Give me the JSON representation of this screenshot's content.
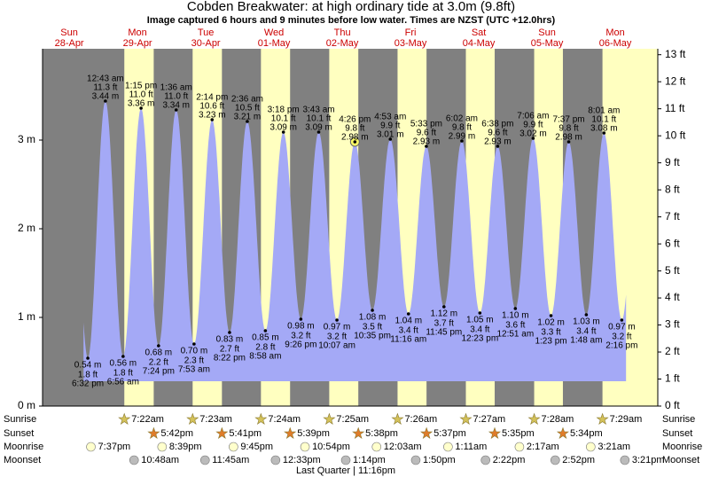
{
  "chart_data": {
    "type": "tide",
    "title": "Cobden Breakwater: at high  ordinary tide at 3.0m (9.8ft)",
    "subtitle": "Image captured 6 hours and 9 minutes before low water. Times are NZST (UTC +12.0hrs)",
    "ylim": [
      0,
      4.03
    ],
    "yticks": [
      {
        "value": 0,
        "label": "0 m"
      },
      {
        "value": 1,
        "label": "1 m"
      },
      {
        "value": 2,
        "label": "2 m"
      },
      {
        "value": 3,
        "label": "3 m"
      }
    ],
    "y2lim": [
      0,
      13.22
    ],
    "y2ticks": [
      {
        "value": 0,
        "label": "0 ft"
      },
      {
        "value": 1,
        "label": "1 ft"
      },
      {
        "value": 2,
        "label": "2 ft"
      },
      {
        "value": 3,
        "label": "3 ft"
      },
      {
        "value": 4,
        "label": "4 ft"
      },
      {
        "value": 5,
        "label": "5 ft"
      },
      {
        "value": 6,
        "label": "6 ft"
      },
      {
        "value": 7,
        "label": "7 ft"
      },
      {
        "value": 8,
        "label": "8 ft"
      },
      {
        "value": 9,
        "label": "9 ft"
      },
      {
        "value": 10,
        "label": "10 ft"
      },
      {
        "value": 11,
        "label": "11 ft"
      },
      {
        "value": 12,
        "label": "12 ft"
      },
      {
        "value": 13,
        "label": "13 ft"
      }
    ],
    "colors": {
      "night": "#808080",
      "day": "#ffffc0",
      "water": "#a4a9f6",
      "header": "#cc0000"
    },
    "row_labels": [
      "Sunrise",
      "Sunset",
      "Moonrise",
      "Moonset"
    ],
    "moon_phase": "Last Quarter | 11:16pm",
    "days": [
      {
        "dow": "Sun",
        "date": "28-Apr",
        "tides": [
          {
            "time": "6:32 pm",
            "m": 0.54,
            "m_label": "0.54 m",
            "ft_label": "1.8 ft"
          }
        ],
        "moonrise": "7:37pm"
      },
      {
        "dow": "Mon",
        "date": "29-Apr",
        "tides": [
          {
            "time": "12:43 am",
            "m": 3.44,
            "m_label": "3.44 m",
            "ft_label": "11.3 ft"
          },
          {
            "time": "6:56 am",
            "m": 0.56,
            "m_label": "0.56 m",
            "ft_label": "1.8 ft"
          },
          {
            "time": "1:15 pm",
            "m": 3.36,
            "m_label": "3.36 m",
            "ft_label": "11.0 ft"
          },
          {
            "time": "7:24 pm",
            "m": 0.68,
            "m_label": "0.68 m",
            "ft_label": "2.2 ft"
          }
        ],
        "sunrise": "7:22am",
        "sunset": "5:42pm",
        "moonrise": "8:39pm",
        "moonset": "10:48am"
      },
      {
        "dow": "Tue",
        "date": "30-Apr",
        "tides": [
          {
            "time": "1:36 am",
            "m": 3.34,
            "m_label": "3.34 m",
            "ft_label": "11.0 ft"
          },
          {
            "time": "7:53 am",
            "m": 0.7,
            "m_label": "0.70 m",
            "ft_label": "2.3 ft"
          },
          {
            "time": "2:14 pm",
            "m": 3.23,
            "m_label": "3.23 m",
            "ft_label": "10.6 ft"
          },
          {
            "time": "8:22 pm",
            "m": 0.83,
            "m_label": "0.83 m",
            "ft_label": "2.7 ft"
          }
        ],
        "sunrise": "7:23am",
        "sunset": "5:41pm",
        "moonrise": "9:45pm",
        "moonset": "11:45am"
      },
      {
        "dow": "Wed",
        "date": "01-May",
        "tides": [
          {
            "time": "2:36 am",
            "m": 3.21,
            "m_label": "3.21 m",
            "ft_label": "10.5 ft"
          },
          {
            "time": "8:58 am",
            "m": 0.85,
            "m_label": "0.85 m",
            "ft_label": "2.8 ft"
          },
          {
            "time": "3:18 pm",
            "m": 3.09,
            "m_label": "3.09 m",
            "ft_label": "10.1 ft"
          },
          {
            "time": "9:26 pm",
            "m": 0.98,
            "m_label": "0.98 m",
            "ft_label": "3.2 ft"
          }
        ],
        "sunrise": "7:24am",
        "sunset": "5:39pm",
        "moonrise": "10:54pm",
        "moonset": "12:33pm"
      },
      {
        "dow": "Thu",
        "date": "02-May",
        "tides": [
          {
            "time": "3:43 am",
            "m": 3.09,
            "m_label": "3.09 m",
            "ft_label": "10.1 ft"
          },
          {
            "time": "10:07 am",
            "m": 0.97,
            "m_label": "0.97 m",
            "ft_label": "3.2 ft"
          },
          {
            "time": "4:26 pm",
            "m": 2.98,
            "m_label": "2.98 m",
            "ft_label": "9.8 ft"
          },
          {
            "time": "10:35 pm",
            "m": 1.08,
            "m_label": "1.08 m",
            "ft_label": "3.5 ft"
          }
        ],
        "sunrise": "7:25am",
        "sunset": "5:38pm",
        "moonset": "1:14pm"
      },
      {
        "dow": "Fri",
        "date": "03-May",
        "tides": [
          {
            "time": "4:53 am",
            "m": 3.01,
            "m_label": "3.01 m",
            "ft_label": "9.9 ft"
          },
          {
            "time": "11:16 am",
            "m": 1.04,
            "m_label": "1.04 m",
            "ft_label": "3.4 ft"
          },
          {
            "time": "5:33 pm",
            "m": 2.93,
            "m_label": "2.93 m",
            "ft_label": "9.6 ft"
          },
          {
            "time": "11:45 pm",
            "m": 1.12,
            "m_label": "1.12 m",
            "ft_label": "3.7 ft"
          }
        ],
        "sunrise": "7:26am",
        "sunset": "5:37pm",
        "moonrise": "12:03am",
        "moonset": "1:50pm"
      },
      {
        "dow": "Sat",
        "date": "04-May",
        "tides": [
          {
            "time": "6:02 am",
            "m": 2.99,
            "m_label": "2.99 m",
            "ft_label": "9.8 ft"
          },
          {
            "time": "12:23 pm",
            "m": 1.05,
            "m_label": "1.05 m",
            "ft_label": "3.4 ft"
          },
          {
            "time": "6:38 pm",
            "m": 2.93,
            "m_label": "2.93 m",
            "ft_label": "9.6 ft"
          }
        ],
        "sunrise": "7:27am",
        "sunset": "5:35pm",
        "moonrise": "1:11am",
        "moonset": "2:22pm"
      },
      {
        "dow": "Sun",
        "date": "05-May",
        "tides": [
          {
            "time": "12:51 am",
            "m": 1.1,
            "m_label": "1.10 m",
            "ft_label": "3.6 ft"
          },
          {
            "time": "7:06 am",
            "m": 3.02,
            "m_label": "3.02 m",
            "ft_label": "9.9 ft"
          },
          {
            "time": "1:23 pm",
            "m": 1.02,
            "m_label": "1.02 m",
            "ft_label": "3.3 ft"
          },
          {
            "time": "7:37 pm",
            "m": 2.98,
            "m_label": "2.98 m",
            "ft_label": "9.8 ft"
          }
        ],
        "sunrise": "7:28am",
        "sunset": "5:34pm",
        "moonrise": "2:17am",
        "moonset": "2:52pm"
      },
      {
        "dow": "Mon",
        "date": "06-May",
        "tides": [
          {
            "time": "1:48 am",
            "m": 1.03,
            "m_label": "1.03 m",
            "ft_label": "3.4 ft"
          },
          {
            "time": "8:01 am",
            "m": 3.08,
            "m_label": "3.08 m",
            "ft_label": "10.1 ft"
          },
          {
            "time": "2:16 pm",
            "m": 0.97,
            "m_label": "0.97 m",
            "ft_label": "3.2 ft"
          }
        ],
        "sunrise": "7:29am",
        "moonrise": "3:21am",
        "moonset": "3:21pm"
      }
    ]
  }
}
